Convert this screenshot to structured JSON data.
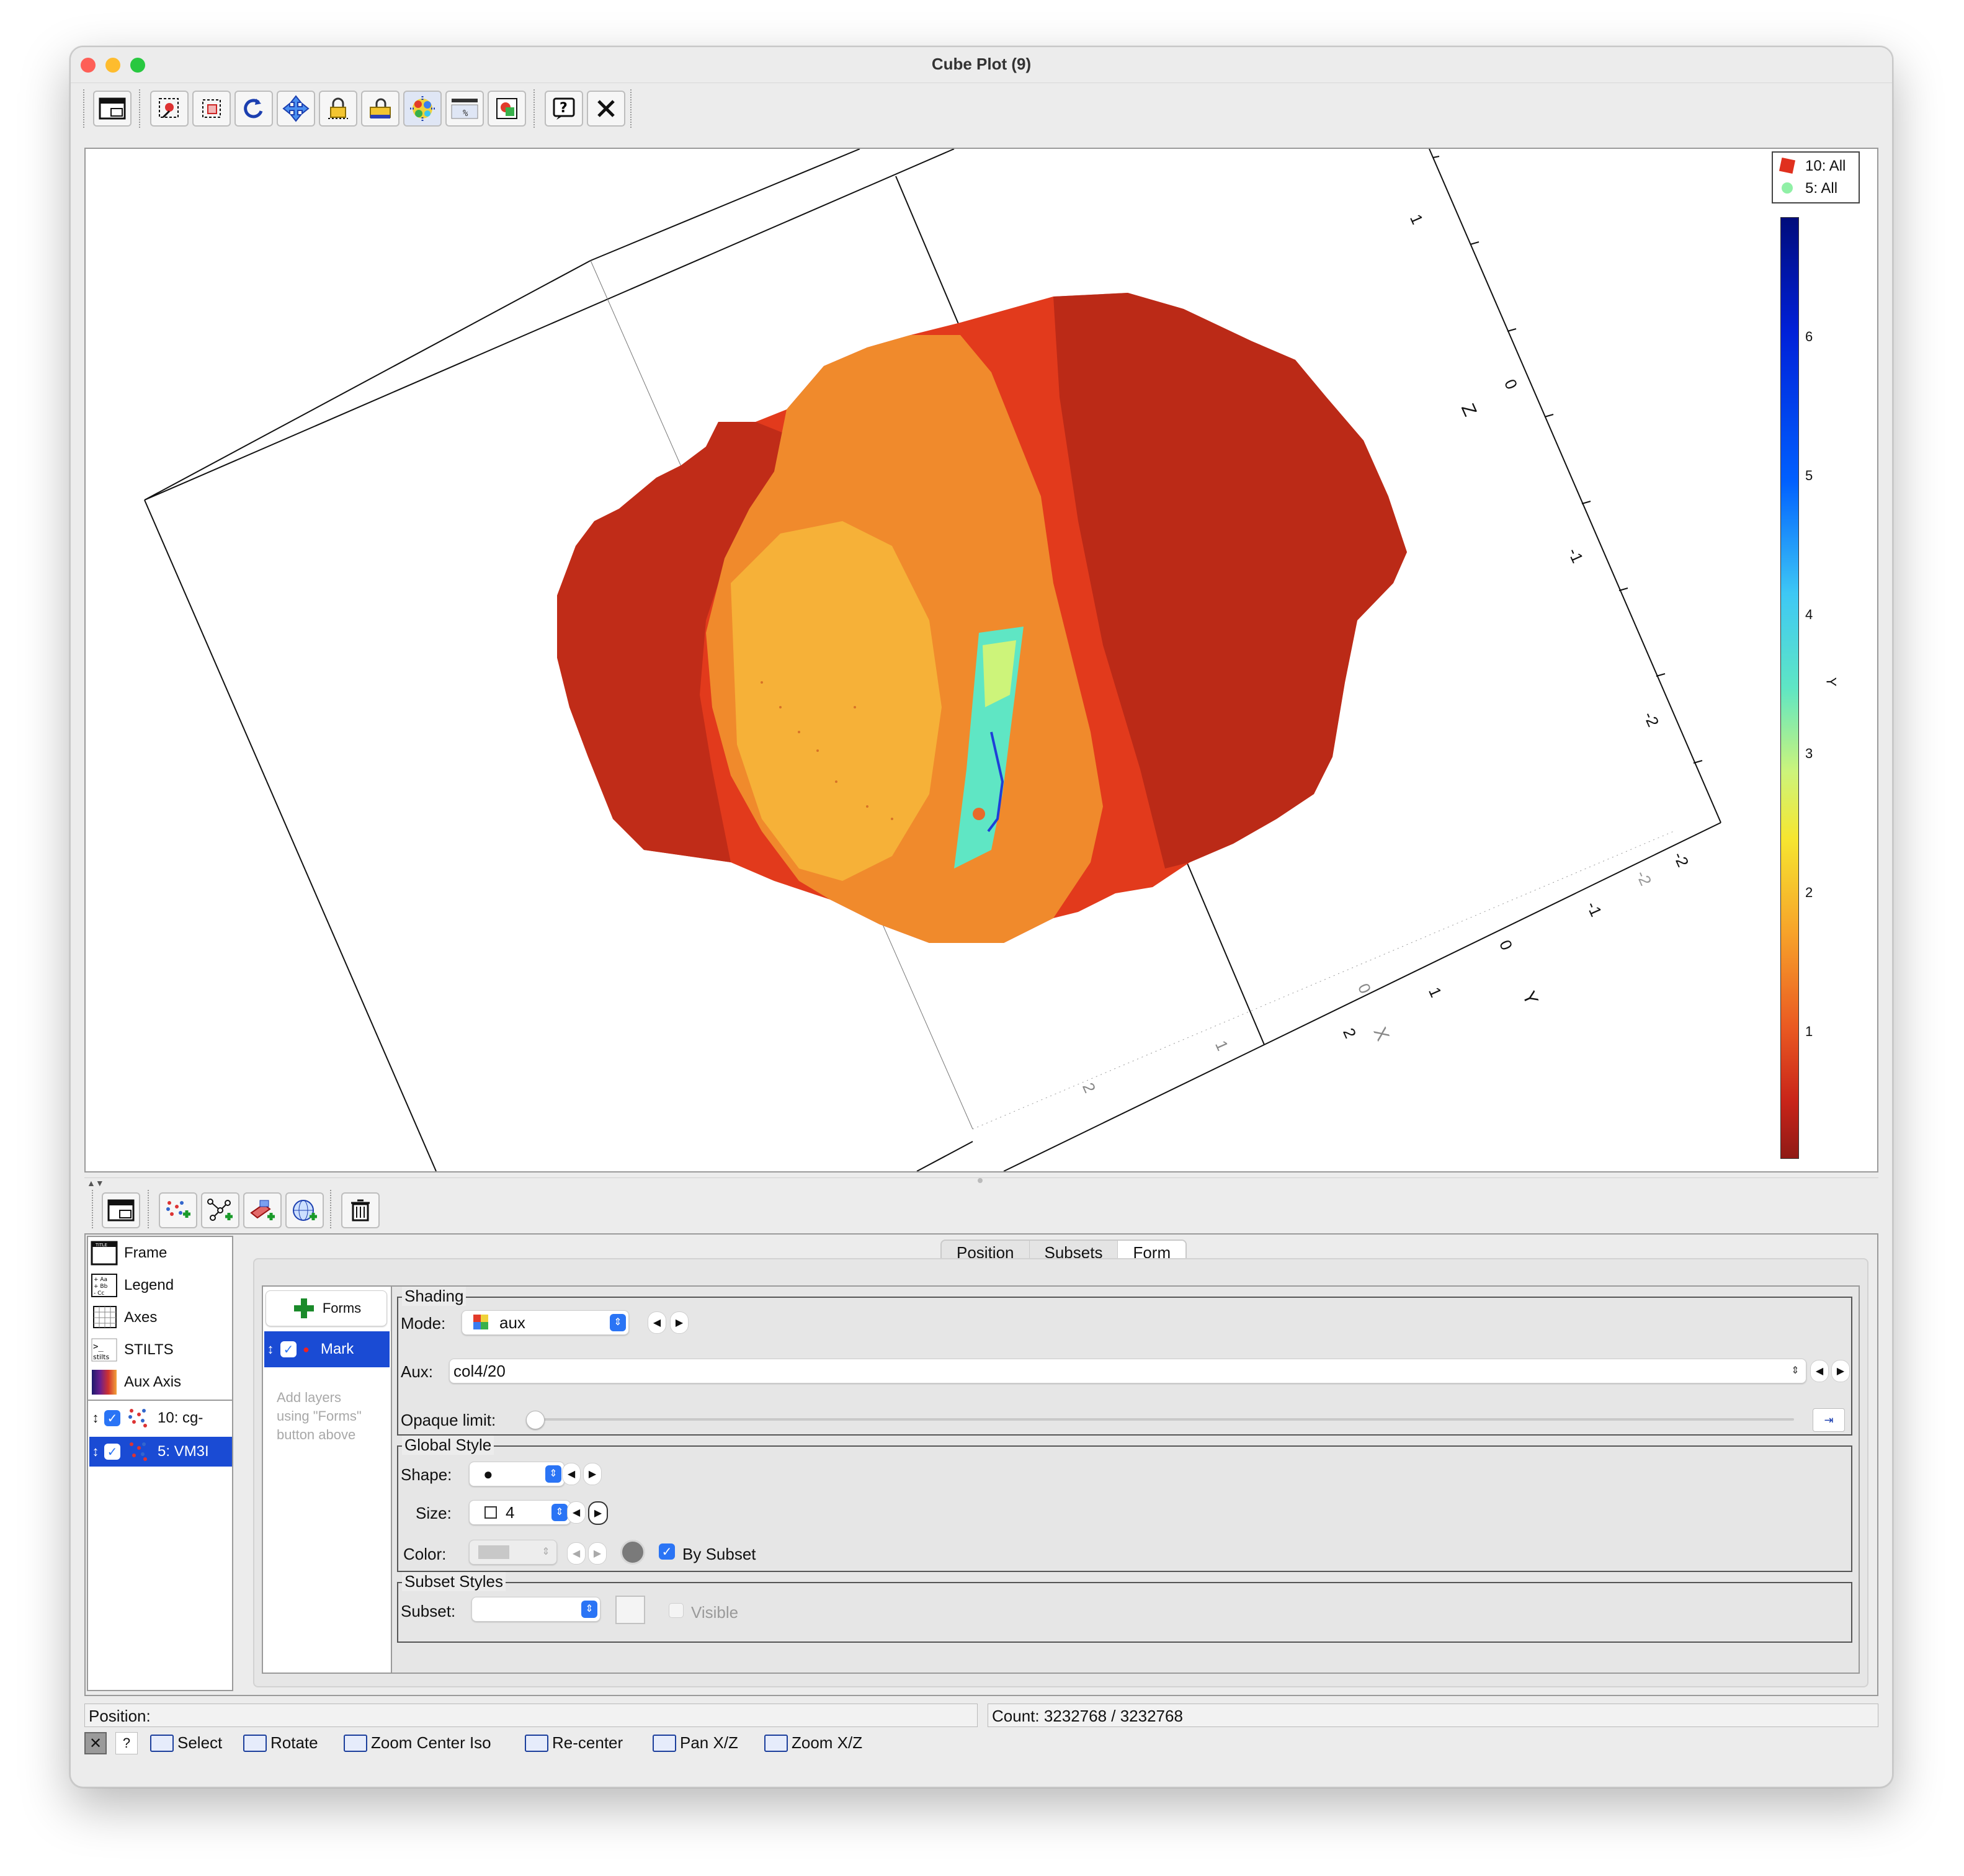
{
  "window": {
    "title": "Cube Plot (9)"
  },
  "toolbar": {
    "icons": [
      "window-icon",
      "rotate-select-icon",
      "zoom-region-icon",
      "rotate-reset-icon",
      "pan-icon",
      "lock-icon",
      "lock-aspect-icon",
      "colormap-icon",
      "axis-scale-icon",
      "export-icon",
      "help-icon",
      "close-icon"
    ]
  },
  "plot": {
    "z_ticks": [
      "1",
      "0",
      "-1",
      "-2"
    ],
    "z_label": "Z",
    "y_ticks_front": [
      "-2",
      "-1",
      "0",
      "1",
      "2"
    ],
    "y_ticks_back": [
      "-2"
    ],
    "y_label": "Y",
    "x_ticks": [
      "2",
      "1",
      "0"
    ],
    "x_label": "X",
    "colors": {
      "cube_body": "#e8391c",
      "inner_body": "#f5a534",
      "dark_body": "#b42a18",
      "strip": "#5fe6c4"
    }
  },
  "legend": {
    "items": [
      {
        "label": "10: All",
        "color": "#e0301e",
        "shape": "square"
      },
      {
        "label": "5: All",
        "color": "#90f0a6",
        "shape": "circle"
      }
    ]
  },
  "aux_axis": {
    "label": "Y",
    "ticks": [
      "6",
      "5",
      "4",
      "3",
      "2",
      "1"
    ]
  },
  "layer_toolbar": {
    "icons": [
      "window-icon",
      "add-position-layer-icon",
      "add-pair-layer-icon",
      "add-area-layer-icon",
      "add-sky-layer-icon",
      "delete-icon"
    ]
  },
  "sidebar": {
    "items": [
      {
        "label": "Frame",
        "icon": "frame-icon"
      },
      {
        "label": "Legend",
        "icon": "legend-icon"
      },
      {
        "label": "Axes",
        "icon": "axes-icon"
      },
      {
        "label": "STILTS",
        "icon": "stilts-icon"
      },
      {
        "label": "Aux Axis",
        "icon": "aux-axis-icon"
      }
    ],
    "layers": [
      {
        "label": "10: cg-",
        "checked": true,
        "selected": false
      },
      {
        "label": "5: VM3I",
        "checked": true,
        "selected": true
      }
    ]
  },
  "tabs": {
    "items": [
      "Position",
      "Subsets",
      "Form"
    ],
    "active": "Form"
  },
  "forms": {
    "button_label": "Forms",
    "layer_label": "Mark",
    "hint": [
      "Add layers",
      "using \"Forms\"",
      "button above"
    ]
  },
  "shading": {
    "title": "Shading",
    "mode_label": "Mode:",
    "mode_value": "aux",
    "aux_label": "Aux:",
    "aux_value": "col4/20",
    "opaque_label": "Opaque limit:"
  },
  "global_style": {
    "title": "Global Style",
    "shape_label": "Shape:",
    "shape_value": "●",
    "size_label": "Size:",
    "size_value": "4",
    "color_label": "Color:",
    "by_subset_label": "By Subset",
    "by_subset_checked": true
  },
  "subset_styles": {
    "title": "Subset Styles",
    "subset_label": "Subset:",
    "subset_value": "",
    "visible_label": "Visible"
  },
  "status": {
    "position_label": "Position:",
    "count_text": "Count: 3232768 / 3232768"
  },
  "modes": [
    {
      "label": "Select"
    },
    {
      "label": "Rotate"
    },
    {
      "label": "Zoom Center Iso"
    },
    {
      "label": "Re-center"
    },
    {
      "label": "Pan X/Z"
    },
    {
      "label": "Zoom X/Z"
    }
  ]
}
